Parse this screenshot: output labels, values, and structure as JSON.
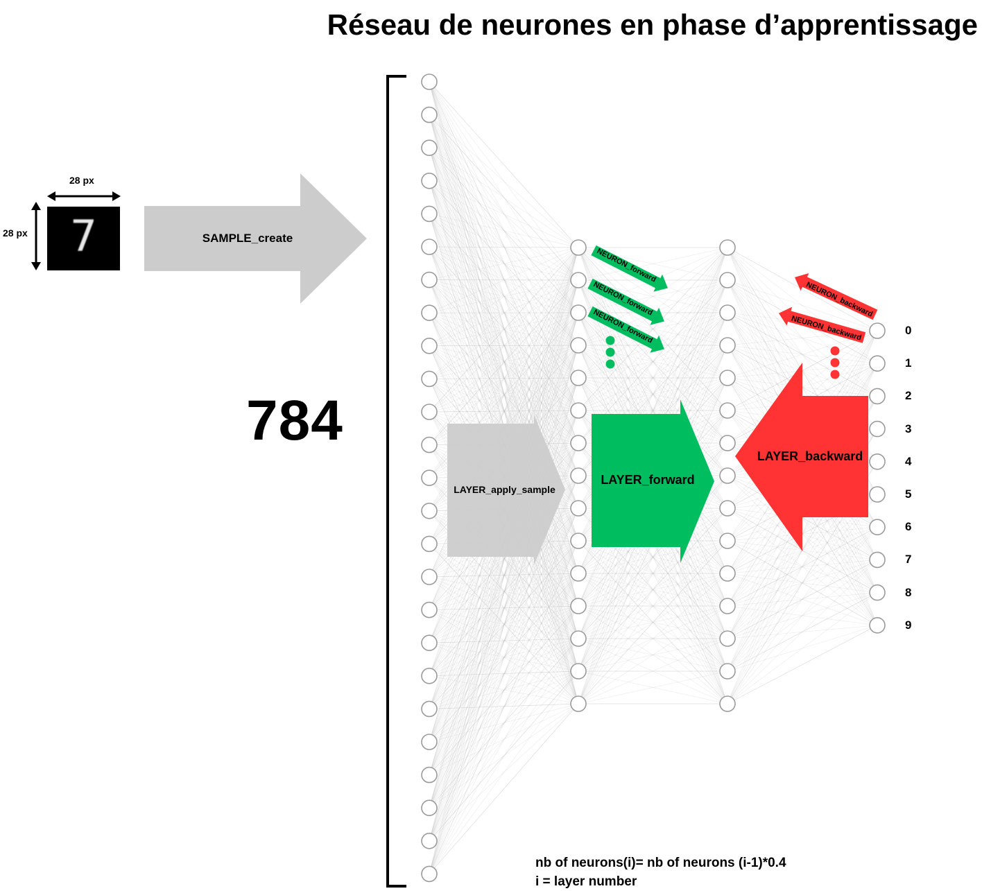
{
  "title": "Réseau de neurones en phase d’apprentissage",
  "input_image": {
    "digit": "7",
    "width_label": "28 px",
    "height_label": "28 px"
  },
  "input_count": "784",
  "arrows": {
    "sample_create": "SAMPLE_create",
    "layer_apply_sample": "LAYER_apply_sample",
    "layer_forward": "LAYER_forward",
    "layer_backward": "LAYER_backward",
    "neuron_forward": [
      "NEURON_forward",
      "NEURON_forward",
      "NEURON_forward"
    ],
    "neuron_backward": [
      "NEURON_backward",
      "NEURON_backward"
    ]
  },
  "layers": [
    {
      "name": "input",
      "visible_neurons": 25
    },
    {
      "name": "hidden-1",
      "visible_neurons": 15
    },
    {
      "name": "hidden-2",
      "visible_neurons": 15
    },
    {
      "name": "output",
      "visible_neurons": 10
    }
  ],
  "output_labels": [
    "0",
    "1",
    "2",
    "3",
    "4",
    "5",
    "6",
    "7",
    "8",
    "9"
  ],
  "formula": {
    "line1": "nb of neurons(i)= nb of neurons (i-1)*0.4",
    "line2": "i = layer number"
  },
  "colors": {
    "forward": "#00be5f",
    "backward": "#ff3333",
    "neutral_arrow": "#cccccc",
    "neuron_stroke": "#9a9a9a",
    "edges": "#bdbdbd"
  }
}
